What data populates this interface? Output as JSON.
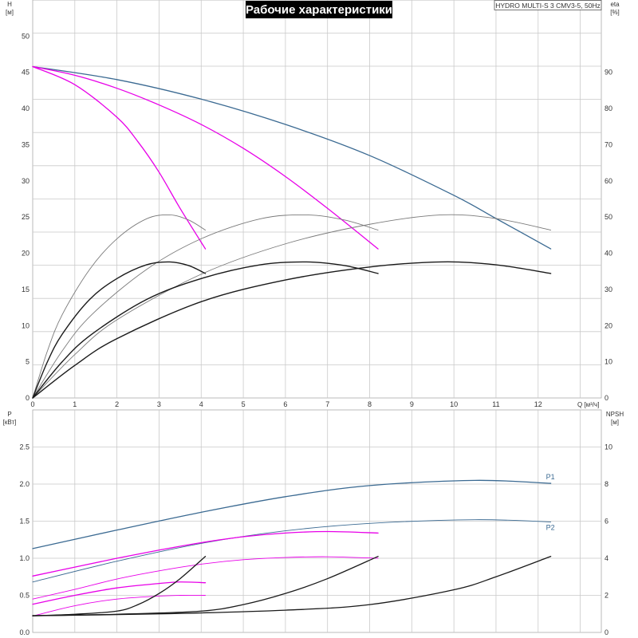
{
  "title": "Рабочие характеристики",
  "model": "HYDRO MULTI-S 3 CMV3-5, 50Hz",
  "colors": {
    "blue": "#3b6a92",
    "magenta": "#e800e8",
    "black": "#1a1a1a",
    "gray": "#7a7a7a",
    "grid": "#c9c9c9"
  },
  "chart_data": [
    {
      "type": "line",
      "panel": "top",
      "xlabel": "Q [м³/ч]",
      "ylabel_left": "H [м]",
      "ylabel_right": "eta [%]",
      "xlim": [
        0,
        13.5
      ],
      "ylim_left": [
        0,
        55
      ],
      "ylim_right": [
        0,
        110
      ],
      "xticks": [
        0,
        1,
        2,
        3,
        4,
        5,
        6,
        7,
        8,
        9,
        10,
        11,
        12
      ],
      "yticks_left": [
        0,
        5,
        10,
        15,
        20,
        25,
        30,
        35,
        40,
        45,
        50
      ],
      "yticks_right": [
        0,
        10,
        20,
        30,
        40,
        50,
        60,
        70,
        80,
        90
      ],
      "grid": true,
      "series": [
        {
          "id": "h3",
          "axis": "left",
          "color": "blue",
          "width": 1.3,
          "x": [
            0,
            2,
            4,
            6,
            8,
            10,
            11,
            12.3
          ],
          "y": [
            45.8,
            44,
            41.3,
            37.8,
            33.5,
            28,
            24.8,
            20.6
          ]
        },
        {
          "id": "h2",
          "axis": "left",
          "color": "magenta",
          "width": 1.3,
          "x": [
            0,
            1,
            2,
            3,
            4,
            5,
            6,
            7,
            8.2
          ],
          "y": [
            45.8,
            44.6,
            42.8,
            40.5,
            37.8,
            34.5,
            30.6,
            26.2,
            20.6
          ]
        },
        {
          "id": "h1",
          "axis": "left",
          "color": "magenta",
          "width": 1.3,
          "x": [
            0,
            1,
            2,
            2.5,
            3,
            3.5,
            4.1
          ],
          "y": [
            45.8,
            43.3,
            38.8,
            35.4,
            31.2,
            26.2,
            20.6
          ]
        },
        {
          "id": "eta3",
          "axis": "right",
          "color": "gray",
          "width": 0.9,
          "x": [
            0,
            1,
            2,
            4,
            6,
            8,
            9.7,
            11,
            12.3
          ],
          "y": [
            0,
            12,
            21.6,
            34.2,
            42.6,
            48,
            50.6,
            49.6,
            46.4
          ]
        },
        {
          "id": "eta2",
          "axis": "right",
          "color": "gray",
          "width": 0.9,
          "x": [
            0,
            0.7,
            1.4,
            2.7,
            4,
            5.4,
            6.5,
            7.4,
            8.2
          ],
          "y": [
            0,
            13,
            23,
            35.5,
            44,
            49.5,
            50.6,
            49.2,
            46.4
          ]
        },
        {
          "id": "eta1",
          "axis": "right",
          "color": "gray",
          "width": 0.9,
          "x": [
            0,
            0.35,
            0.7,
            1.35,
            2,
            2.7,
            3.25,
            3.7,
            4.1
          ],
          "y": [
            0,
            13,
            23,
            35.5,
            44,
            49.5,
            50.6,
            49.2,
            46.4
          ]
        },
        {
          "id": "etatot3",
          "axis": "right",
          "color": "black",
          "width": 1.4,
          "x": [
            0,
            1,
            2,
            4,
            6,
            8,
            9.7,
            11,
            12.3
          ],
          "y": [
            0,
            9,
            16.4,
            26.6,
            32.6,
            36.2,
            37.6,
            36.8,
            34.4
          ]
        },
        {
          "id": "etatot2",
          "axis": "right",
          "color": "black",
          "width": 1.4,
          "x": [
            0,
            0.7,
            1.4,
            2.7,
            4,
            5.4,
            6.5,
            7.4,
            8.2
          ],
          "y": [
            0,
            10,
            17.6,
            27.2,
            33,
            36.8,
            37.6,
            36.6,
            34.4
          ]
        },
        {
          "id": "etatot1",
          "axis": "right",
          "color": "black",
          "width": 1.4,
          "x": [
            0,
            0.35,
            0.7,
            1.35,
            2,
            2.7,
            3.25,
            3.7,
            4.1
          ],
          "y": [
            0,
            10,
            17.6,
            27.2,
            33,
            36.8,
            37.6,
            36.6,
            34.4
          ]
        }
      ]
    },
    {
      "type": "line",
      "panel": "bottom",
      "ylabel_left": "P [кВт]",
      "ylabel_right": "NPSH [м]",
      "xlim": [
        0,
        13.5
      ],
      "ylim_left": [
        0,
        3
      ],
      "ylim_right": [
        0,
        12
      ],
      "yticks_left": [
        0,
        0.5,
        1.0,
        1.5,
        2.0,
        2.5
      ],
      "yticks_left_labels": [
        "0.0",
        "0.5",
        "1.0",
        "1.5",
        "2.0",
        "2.5"
      ],
      "yticks_right": [
        0,
        2,
        4,
        6,
        8,
        10
      ],
      "grid": true,
      "series": [
        {
          "id": "P1",
          "name": "P1",
          "axis": "left",
          "color": "blue",
          "width": 1.3,
          "x": [
            0,
            2,
            4,
            6,
            8,
            10.5,
            12.3
          ],
          "y": [
            1.13,
            1.38,
            1.62,
            1.83,
            1.98,
            2.05,
            2.01
          ]
        },
        {
          "id": "P2",
          "name": "P2",
          "axis": "left",
          "color": "blue",
          "width": 0.9,
          "x": [
            0,
            2,
            4,
            6,
            8,
            10.5,
            12.3
          ],
          "y": [
            0.68,
            0.96,
            1.2,
            1.37,
            1.47,
            1.52,
            1.49
          ]
        },
        {
          "id": "p1_2",
          "axis": "left",
          "color": "magenta",
          "width": 1.3,
          "x": [
            0,
            1,
            2,
            3,
            4,
            5,
            6,
            7,
            8.2
          ],
          "y": [
            0.76,
            0.88,
            1.0,
            1.11,
            1.21,
            1.29,
            1.34,
            1.36,
            1.34
          ]
        },
        {
          "id": "p2_2",
          "axis": "left",
          "color": "magenta",
          "width": 0.9,
          "x": [
            0,
            1,
            2,
            3,
            4,
            5,
            6,
            7,
            8.2
          ],
          "y": [
            0.45,
            0.58,
            0.72,
            0.83,
            0.92,
            0.98,
            1.01,
            1.02,
            1.0
          ]
        },
        {
          "id": "p1_1",
          "axis": "left",
          "color": "magenta",
          "width": 1.3,
          "x": [
            0,
            1,
            2,
            3,
            3.5,
            4.1
          ],
          "y": [
            0.38,
            0.5,
            0.6,
            0.66,
            0.68,
            0.67
          ]
        },
        {
          "id": "p2_1",
          "axis": "left",
          "color": "magenta",
          "width": 0.9,
          "x": [
            0,
            1,
            2,
            3,
            3.5,
            4.1
          ],
          "y": [
            0.22,
            0.36,
            0.45,
            0.49,
            0.5,
            0.5
          ]
        },
        {
          "id": "npsh3",
          "axis": "right",
          "color": "black",
          "width": 1.3,
          "x": [
            0,
            3,
            6,
            8,
            10,
            11,
            12.3
          ],
          "y": [
            0.9,
            1.0,
            1.2,
            1.5,
            2.3,
            3.0,
            4.1
          ]
        },
        {
          "id": "npsh2",
          "axis": "right",
          "color": "black",
          "width": 1.3,
          "x": [
            0,
            2,
            4,
            5,
            6,
            7,
            8.2
          ],
          "y": [
            0.9,
            0.98,
            1.15,
            1.5,
            2.1,
            2.9,
            4.1
          ]
        },
        {
          "id": "npsh1",
          "axis": "right",
          "color": "black",
          "width": 1.3,
          "x": [
            0,
            1,
            2,
            2.5,
            3,
            3.5,
            4.1
          ],
          "y": [
            0.9,
            0.98,
            1.15,
            1.5,
            2.1,
            2.9,
            4.1
          ]
        }
      ]
    }
  ]
}
